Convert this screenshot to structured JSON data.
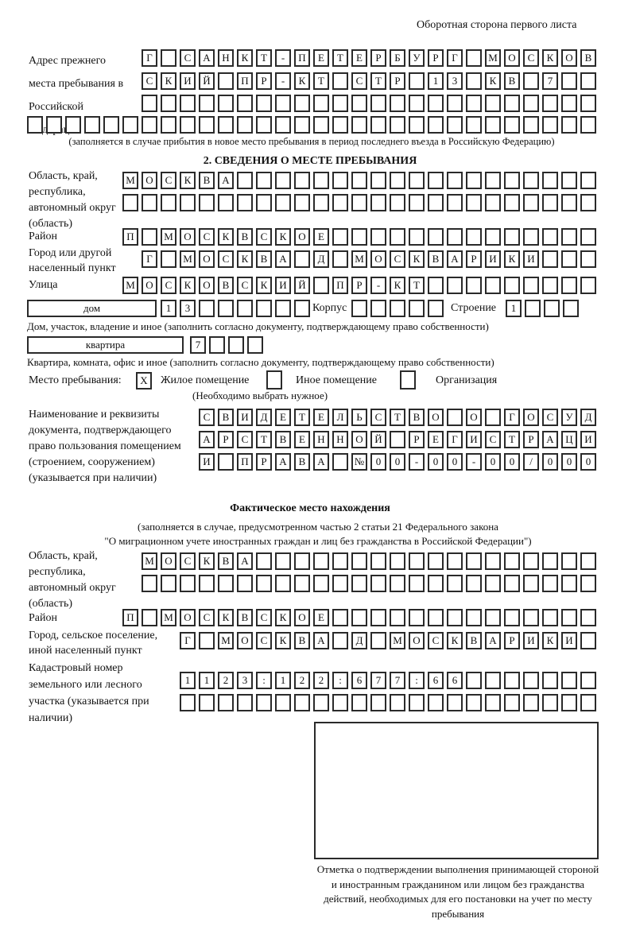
{
  "header": "Оборотная сторона первого листа",
  "prev_address": {
    "label": "Адрес прежнего места пребывания в Российской Федерации",
    "rows": [
      [
        "Г",
        "",
        "С",
        "А",
        "Н",
        "К",
        "Т",
        "-",
        "П",
        "Е",
        "Т",
        "Е",
        "Р",
        "Б",
        "У",
        "Р",
        "Г",
        "",
        "М",
        "О",
        "С",
        "К",
        "О",
        "В"
      ],
      [
        "С",
        "К",
        "И",
        "Й",
        "",
        "П",
        "Р",
        "-",
        "К",
        "Т",
        "",
        "С",
        "Т",
        "Р",
        "",
        "1",
        "3",
        "",
        "К",
        "В",
        "",
        "7",
        "",
        ""
      ],
      [
        "",
        "",
        "",
        "",
        "",
        "",
        "",
        "",
        "",
        "",
        "",
        "",
        "",
        "",
        "",
        "",
        "",
        "",
        "",
        "",
        "",
        "",
        "",
        ""
      ],
      [
        "",
        "",
        "",
        "",
        "",
        "",
        "",
        "",
        "",
        "",
        "",
        "",
        "",
        "",
        "",
        "",
        "",
        "",
        "",
        "",
        "",
        "",
        "",
        "",
        "",
        "",
        "",
        "",
        "",
        ""
      ]
    ],
    "note": "(заполняется в случае прибытия в новое место пребывания в период последнего въезда в Российскую Федерацию)"
  },
  "section2": {
    "title": "2. СВЕДЕНИЯ О МЕСТЕ ПРЕБЫВАНИЯ",
    "region_label": "Область, край, республика, автономный округ (область)",
    "region_rows": [
      [
        "М",
        "О",
        "С",
        "К",
        "В",
        "А",
        "",
        "",
        "",
        "",
        "",
        "",
        "",
        "",
        "",
        "",
        "",
        "",
        "",
        "",
        "",
        "",
        "",
        "",
        ""
      ],
      [
        "",
        "",
        "",
        "",
        "",
        "",
        "",
        "",
        "",
        "",
        "",
        "",
        "",
        "",
        "",
        "",
        "",
        "",
        "",
        "",
        "",
        "",
        "",
        "",
        ""
      ]
    ],
    "district_label": "Район",
    "district_row": [
      "П",
      "",
      "М",
      "О",
      "С",
      "К",
      "В",
      "С",
      "К",
      "О",
      "Е",
      "",
      "",
      "",
      "",
      "",
      "",
      "",
      "",
      "",
      "",
      "",
      "",
      "",
      ""
    ],
    "city_label": "Город или другой населенный пункт",
    "city_row": [
      "Г",
      "",
      "М",
      "О",
      "С",
      "К",
      "В",
      "А",
      "",
      "Д",
      "",
      "М",
      "О",
      "С",
      "К",
      "В",
      "А",
      "Р",
      "И",
      "К",
      "И",
      "",
      "",
      ""
    ],
    "street_label": "Улица",
    "street_row": [
      "М",
      "О",
      "С",
      "К",
      "О",
      "В",
      "С",
      "К",
      "И",
      "Й",
      "",
      "П",
      "Р",
      "-",
      "К",
      "Т",
      "",
      "",
      "",
      "",
      "",
      "",
      "",
      "",
      ""
    ],
    "house_type": "дом",
    "house_cells": [
      "1",
      "3",
      "",
      "",
      "",
      "",
      "",
      ""
    ],
    "korpus_label": "Корпус",
    "korpus_cells": [
      "",
      "",
      "",
      "",
      ""
    ],
    "building_label": "Строение",
    "building_cells": [
      "1",
      "",
      "",
      ""
    ],
    "house_note": "Дом, участок, владение и иное (заполнить согласно документу, подтверждающему право собственности)",
    "flat_type": "квартира",
    "flat_cells": [
      "7",
      "",
      "",
      ""
    ],
    "flat_note": "Квартира, комната, офис и иное (заполнить согласно документу, подтверждающему право собственности)",
    "stay_label": "Место пребывания:",
    "stay_options": [
      {
        "label": "Жилое помещение",
        "mark": "X"
      },
      {
        "label": "Иное помещение",
        "mark": ""
      },
      {
        "label": "Организация",
        "mark": ""
      }
    ],
    "stay_note": "(Необходимо выбрать нужное)",
    "doc_label": "Наименование и реквизиты документа, подтверждающего право пользования помещением (строением, сооружением) (указывается при наличии)",
    "doc_rows": [
      [
        "С",
        "В",
        "И",
        "Д",
        "Е",
        "Т",
        "Е",
        "Л",
        "Ь",
        "С",
        "Т",
        "В",
        "О",
        "",
        "О",
        "",
        "Г",
        "О",
        "С",
        "У",
        "Д"
      ],
      [
        "А",
        "Р",
        "С",
        "Т",
        "В",
        "Е",
        "Н",
        "Н",
        "О",
        "Й",
        "",
        "Р",
        "Е",
        "Г",
        "И",
        "С",
        "Т",
        "Р",
        "А",
        "Ц",
        "И"
      ],
      [
        "И",
        "",
        "П",
        "Р",
        "А",
        "В",
        "А",
        "",
        "№",
        "0",
        "0",
        "-",
        "0",
        "0",
        "-",
        "0",
        "0",
        "/",
        "0",
        "0",
        "0"
      ]
    ]
  },
  "actual": {
    "title": "Фактическое место нахождения",
    "note1": "(заполняется в случае, предусмотренном частью 2 статьи 21 Федерального закона",
    "note2": "\"О миграционном учете иностранных граждан и лиц без гражданства в Российской Федерации\")",
    "region_label": "Область, край, республика, автономный округ (область)",
    "region_rows": [
      [
        "М",
        "О",
        "С",
        "К",
        "В",
        "А",
        "",
        "",
        "",
        "",
        "",
        "",
        "",
        "",
        "",
        "",
        "",
        "",
        "",
        "",
        "",
        "",
        "",
        ""
      ],
      [
        "",
        "",
        "",
        "",
        "",
        "",
        "",
        "",
        "",
        "",
        "",
        "",
        "",
        "",
        "",
        "",
        "",
        "",
        "",
        "",
        "",
        "",
        "",
        ""
      ]
    ],
    "district_label": "Район",
    "district_row": [
      "П",
      "",
      "М",
      "О",
      "С",
      "К",
      "В",
      "С",
      "К",
      "О",
      "Е",
      "",
      "",
      "",
      "",
      "",
      "",
      "",
      "",
      "",
      "",
      "",
      "",
      "",
      ""
    ],
    "city_label": "Город, сельское поселение, иной населенный пункт",
    "city_row": [
      "Г",
      "",
      "М",
      "О",
      "С",
      "К",
      "В",
      "А",
      "",
      "Д",
      "",
      "М",
      "О",
      "С",
      "К",
      "В",
      "А",
      "Р",
      "И",
      "К",
      "И",
      ""
    ],
    "cadastre_label": "Кадастровый номер земельного или лесного участка (указывается при наличии)",
    "cadastre_rows": [
      [
        "1",
        "1",
        "2",
        "3",
        ":",
        "1",
        "2",
        "2",
        ":",
        "6",
        "7",
        "7",
        ":",
        "6",
        "6",
        "",
        "",
        "",
        "",
        "",
        "",
        ""
      ],
      [
        "",
        "",
        "",
        "",
        "",
        "",
        "",
        "",
        "",
        "",
        "",
        "",
        "",
        "",
        "",
        "",
        "",
        "",
        "",
        "",
        "",
        ""
      ]
    ]
  },
  "stamp_caption": "Отметка о подтверждении выполнения принимающей стороной и иностранным гражданином или лицом без гражданства действий, необходимых для его постановки на учет по месту пребывания"
}
